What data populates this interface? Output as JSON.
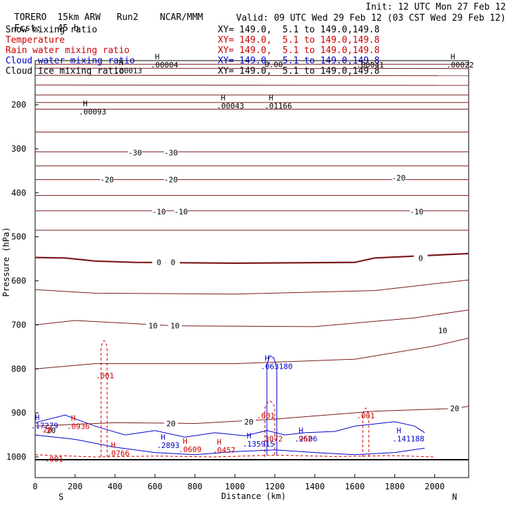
{
  "header": {
    "model": "TORERO",
    "resolution": "15km ARW",
    "run": "Run2",
    "org": "NCAR/MMM",
    "init": "Init: 12 UTC Mon 27 Feb 12",
    "fcst_label": "Fcst:",
    "fcst_value": "45 h",
    "valid": "Valid: 09 UTC Wed 29 Feb 12 (03 CST Wed 29 Feb 12)"
  },
  "fields": [
    {
      "name": "Snow mixing ratio",
      "xy": "XY= 149.0,  5.1 to 149.0,149.8",
      "color": "#000000"
    },
    {
      "name": "Temperature",
      "xy": "XY= 149.0,  5.1 to 149.0,149.8",
      "color": "#cc0000"
    },
    {
      "name": "Rain water mixing ratio",
      "xy": "XY= 149.0,  5.1 to 149.0,149.8",
      "color": "#cc0000"
    },
    {
      "name": "Cloud water mixing ratio",
      "xy": "XY= 149.0,  5.1 to 149.0,149.8",
      "color": "#0000cc"
    },
    {
      "name": "Cloud ice mixing ratio",
      "xy": "XY= 149.0,  5.1 to 149.0,149.8",
      "color": "#000000"
    }
  ],
  "chart_data": {
    "type": "contour-cross-section",
    "xlabel": "Distance (km)",
    "ylabel": "Pressure (hPa)",
    "xlim": [
      0,
      2170
    ],
    "ylim": [
      1000,
      100
    ],
    "x_ticks": [
      0,
      200,
      400,
      600,
      800,
      1000,
      1200,
      1400,
      1600,
      1800,
      2000
    ],
    "y_ticks": [
      200,
      300,
      400,
      500,
      600,
      700,
      800,
      900,
      1000
    ],
    "endpoints": {
      "left": "S",
      "right": "N"
    },
    "temperature_isotherms": [
      {
        "t": -60,
        "p": [
          [
            0,
            108
          ],
          [
            2170,
            108
          ]
        ]
      },
      {
        "t": -55,
        "p": [
          [
            0,
            117
          ],
          [
            2170,
            118
          ]
        ]
      },
      {
        "t": -50,
        "p": [
          [
            0,
            133
          ],
          [
            2170,
            134
          ]
        ]
      },
      {
        "t": -45,
        "p": [
          [
            0,
            155
          ],
          [
            2170,
            156
          ]
        ]
      },
      {
        "t": -40,
        "p": [
          [
            0,
            178
          ],
          [
            2170,
            178
          ]
        ]
      },
      {
        "t": -35,
        "p": [
          [
            0,
            195
          ],
          [
            2170,
            195
          ]
        ]
      },
      {
        "t": -30,
        "p": [
          [
            0,
            210
          ],
          [
            2170,
            210
          ]
        ]
      },
      {
        "t": -25,
        "p": [
          [
            0,
            262
          ],
          [
            2170,
            262
          ]
        ]
      },
      {
        "t": -30,
        "p": [
          [
            0,
            307
          ],
          [
            2170,
            307
          ]
        ]
      },
      {
        "t": -25,
        "p": [
          [
            0,
            339
          ],
          [
            2170,
            339
          ]
        ]
      },
      {
        "t": -20,
        "p": [
          [
            0,
            370
          ],
          [
            2170,
            370
          ]
        ]
      },
      {
        "t": -15,
        "p": [
          [
            0,
            406
          ],
          [
            2170,
            406
          ]
        ]
      },
      {
        "t": -10,
        "p": [
          [
            0,
            441
          ],
          [
            2170,
            441
          ]
        ]
      },
      {
        "t": -5,
        "p": [
          [
            0,
            485
          ],
          [
            2170,
            485
          ]
        ]
      },
      {
        "t": 0,
        "p": [
          [
            0,
            547
          ],
          [
            150,
            548
          ],
          [
            300,
            555
          ],
          [
            500,
            558
          ],
          [
            1000,
            560
          ],
          [
            1600,
            558
          ],
          [
            1700,
            548
          ],
          [
            2170,
            538
          ]
        ]
      },
      {
        "t": 5,
        "p": [
          [
            0,
            620
          ],
          [
            300,
            628
          ],
          [
            1000,
            630
          ],
          [
            1700,
            622
          ],
          [
            2170,
            598
          ]
        ]
      },
      {
        "t": 10,
        "p": [
          [
            0,
            700
          ],
          [
            200,
            690
          ],
          [
            700,
            702
          ],
          [
            1400,
            704
          ],
          [
            1900,
            684
          ],
          [
            2170,
            666
          ]
        ]
      },
      {
        "t": 15,
        "p": [
          [
            0,
            800
          ],
          [
            300,
            788
          ],
          [
            1000,
            788
          ],
          [
            1600,
            778
          ],
          [
            2000,
            748
          ],
          [
            2170,
            730
          ]
        ]
      },
      {
        "t": 20,
        "p": [
          [
            0,
            930
          ],
          [
            400,
            922
          ],
          [
            800,
            924
          ],
          [
            1200,
            914
          ],
          [
            1700,
            896
          ],
          [
            2100,
            890
          ],
          [
            2170,
            885
          ]
        ]
      }
    ],
    "contour_labels": [
      {
        "text": "-30",
        "x": 500,
        "p": 309
      },
      {
        "text": "-30",
        "x": 680,
        "p": 309
      },
      {
        "text": "-20",
        "x": 360,
        "p": 370
      },
      {
        "text": "-20",
        "x": 680,
        "p": 370
      },
      {
        "text": "-20",
        "x": 1820,
        "p": 366
      },
      {
        "text": "-10",
        "x": 620,
        "p": 443
      },
      {
        "text": "-10",
        "x": 730,
        "p": 443
      },
      {
        "text": "-10",
        "x": 1910,
        "p": 443
      },
      {
        "text": "0",
        "x": 620,
        "p": 558
      },
      {
        "text": "0",
        "x": 690,
        "p": 558
      },
      {
        "text": "0",
        "x": 1930,
        "p": 548
      },
      {
        "text": "10",
        "x": 590,
        "p": 702
      },
      {
        "text": "10",
        "x": 700,
        "p": 702
      },
      {
        "text": "10",
        "x": 2040,
        "p": 713
      },
      {
        "text": "20",
        "x": 680,
        "p": 924
      },
      {
        "text": "20",
        "x": 1070,
        "p": 920
      },
      {
        "text": "20",
        "x": 2100,
        "p": 890
      },
      {
        "text": "20",
        "x": 80,
        "p": 940
      }
    ],
    "extrema_labels": [
      {
        "mark": "H",
        "value": ".00004",
        "x": 620,
        "p": 111,
        "color": "#000000"
      },
      {
        "mark": "H",
        "value": ".00013",
        "x": 440,
        "p": 124,
        "color": "#000000"
      },
      {
        "mark": "H",
        "value": ".00022",
        "x": 2100,
        "p": 111,
        "color": "#000000"
      },
      {
        "mark": "H",
        "value": ".00043",
        "x": 950,
        "p": 204,
        "color": "#000000"
      },
      {
        "mark": "H",
        "value": ".01166",
        "x": 1190,
        "p": 204,
        "color": "#000000"
      },
      {
        "mark": "H",
        "value": ".00093",
        "x": 260,
        "p": 217,
        "color": "#000000"
      },
      {
        "mark": "",
        "value": ".00041",
        "x": 1650,
        "p": 111,
        "color": "#000000"
      },
      {
        "mark": "",
        "value": "0.00",
        "x": 1190,
        "p": 110,
        "color": "#000000"
      },
      {
        "mark": "H",
        "value": ".063180",
        "x": 1170,
        "p": 796,
        "color": "#0000cc"
      },
      {
        "mark": "",
        "value": ".001",
        "x": 345,
        "p": 817,
        "color": "#cc0000"
      },
      {
        "mark": "",
        "value": ".001",
        "x": 1150,
        "p": 908,
        "color": "#cc0000"
      },
      {
        "mark": "",
        "value": ".001",
        "x": 1650,
        "p": 908,
        "color": "#cc0000"
      },
      {
        "mark": "H",
        "value": ".17279",
        "x": 20,
        "p": 930,
        "color": "#0000cc"
      },
      {
        "mark": "H",
        "value": ".0936",
        "x": 200,
        "p": 932,
        "color": "#cc0000"
      },
      {
        "mark": "H",
        "value": ".2893",
        "x": 650,
        "p": 975,
        "color": "#0000cc"
      },
      {
        "mark": "H",
        "value": ".0609",
        "x": 760,
        "p": 984,
        "color": "#cc0000"
      },
      {
        "mark": "H",
        "value": ".0457",
        "x": 930,
        "p": 986,
        "color": "#cc0000"
      },
      {
        "mark": "H",
        "value": ".135915",
        "x": 1080,
        "p": 972,
        "color": "#0000cc"
      },
      {
        "mark": "",
        "value": "3072",
        "x": 1190,
        "p": 960,
        "color": "#cc0000"
      },
      {
        "mark": "H",
        "value": ".2506",
        "x": 1340,
        "p": 960,
        "color": "#0000cc"
      },
      {
        "mark": "",
        "value": "962",
        "x": 1360,
        "p": 960,
        "color": "#cc0000"
      },
      {
        "mark": "H",
        "value": ".141188",
        "x": 1830,
        "p": 960,
        "color": "#0000cc"
      },
      {
        "mark": "H",
        "value": ".0766",
        "x": 400,
        "p": 993,
        "color": "#cc0000"
      },
      {
        "mark": "",
        "value": ".001",
        "x": 90,
        "p": 1006,
        "color": "#cc0000"
      },
      {
        "mark": "",
        "value": "20",
        "x": 80,
        "p": 940,
        "color": "#cc0000"
      }
    ],
    "cloud_water_upper": [
      [
        0,
        922
      ],
      [
        150,
        905
      ],
      [
        300,
        930
      ],
      [
        450,
        950
      ],
      [
        600,
        940
      ],
      [
        750,
        955
      ],
      [
        900,
        945
      ],
      [
        1050,
        952
      ],
      [
        1160,
        940
      ],
      [
        1250,
        950
      ],
      [
        1350,
        945
      ],
      [
        1500,
        942
      ],
      [
        1600,
        930
      ],
      [
        1700,
        925
      ],
      [
        1800,
        920
      ],
      [
        1900,
        930
      ],
      [
        1950,
        945
      ]
    ],
    "cloud_water_lower": [
      [
        0,
        950
      ],
      [
        200,
        960
      ],
      [
        400,
        978
      ],
      [
        600,
        990
      ],
      [
        800,
        995
      ],
      [
        1000,
        988
      ],
      [
        1200,
        984
      ],
      [
        1400,
        990
      ],
      [
        1600,
        995
      ],
      [
        1800,
        990
      ],
      [
        1950,
        980
      ]
    ],
    "cloud_water_tower": [
      [
        1160,
        995
      ],
      [
        1160,
        790
      ],
      [
        1175,
        770
      ],
      [
        1195,
        775
      ],
      [
        1210,
        800
      ],
      [
        1210,
        995
      ]
    ],
    "rain_towers": [
      {
        "x": [
          330,
          360
        ],
        "top": 733
      },
      {
        "x": [
          1150,
          1200
        ],
        "top": 870
      },
      {
        "x": [
          1640,
          1670
        ],
        "top": 886
      }
    ]
  }
}
